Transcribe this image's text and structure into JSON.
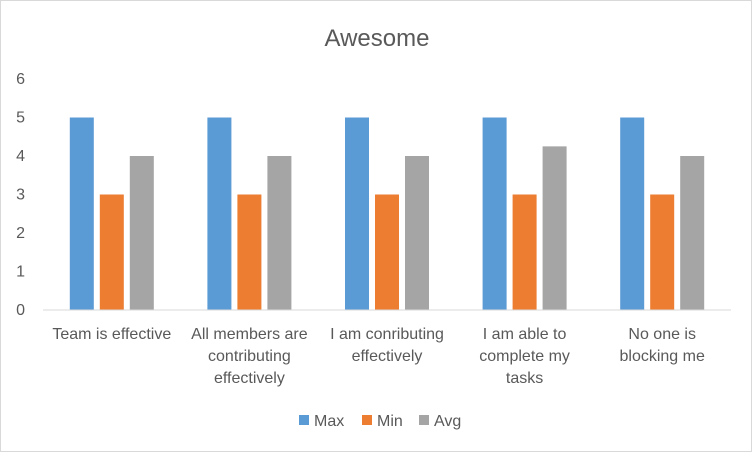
{
  "chart_data": {
    "type": "bar",
    "title": "Awesome",
    "categories": [
      [
        "Team is effective"
      ],
      [
        "All members are",
        "contributing",
        "effectively"
      ],
      [
        "I am conributing",
        "effectively"
      ],
      [
        "I am able to",
        "complete my",
        "tasks"
      ],
      [
        "No one is",
        "blocking me"
      ]
    ],
    "series": [
      {
        "name": "Max",
        "color": "#5b9bd5",
        "values": [
          5,
          5,
          5,
          5,
          5
        ]
      },
      {
        "name": "Min",
        "color": "#ed7d31",
        "values": [
          3,
          3,
          3,
          3,
          3
        ]
      },
      {
        "name": "Avg",
        "color": "#a5a5a5",
        "values": [
          4,
          4,
          4,
          4.25,
          4
        ]
      }
    ],
    "yticks": [
      "0",
      "1",
      "2",
      "3",
      "4",
      "5",
      "6"
    ],
    "ylim": [
      0,
      6
    ],
    "grid": false,
    "legend_position": "bottom"
  }
}
